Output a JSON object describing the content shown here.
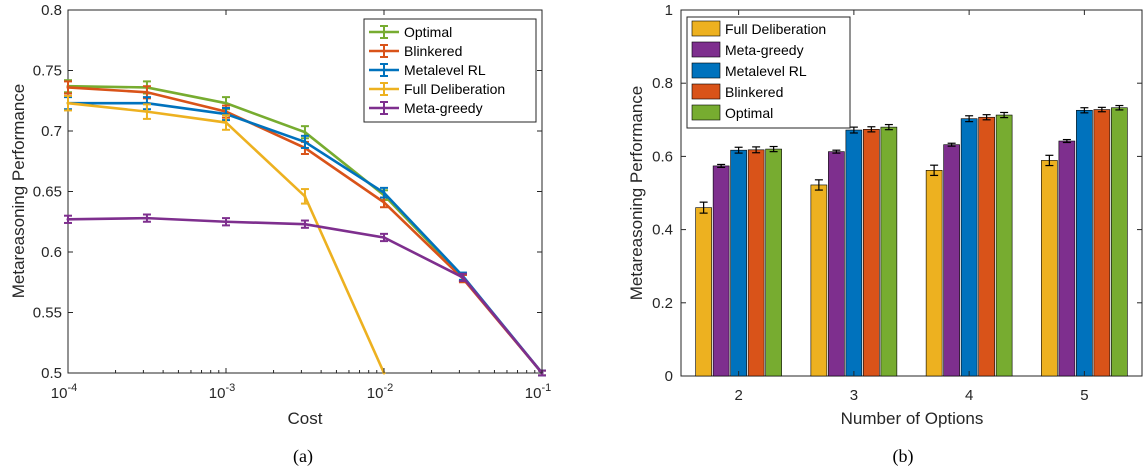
{
  "colors": {
    "Optimal": "#77ac30",
    "Blinkered": "#d95319",
    "Metalevel RL": "#0072bd",
    "Full Deliberation": "#edb120",
    "Meta-greedy": "#7e2f8e"
  },
  "chart_data": [
    {
      "type": "line",
      "caption": "(a)",
      "xlabel": "Cost",
      "ylabel": "Metareasoning Performance",
      "xscale": "log",
      "xlim": [
        0.0001,
        0.1
      ],
      "ylim": [
        0.5,
        0.8
      ],
      "x": [
        0.0001,
        0.000316,
        0.001,
        0.00316,
        0.01,
        0.0316,
        0.1
      ],
      "xticks": [
        {
          "v": 0.0001,
          "base": "10",
          "exp": "-4"
        },
        {
          "v": 0.001,
          "base": "10",
          "exp": "-3"
        },
        {
          "v": 0.01,
          "base": "10",
          "exp": "-2"
        },
        {
          "v": 0.1,
          "base": "10",
          "exp": "-1"
        }
      ],
      "yticks": [
        "0.5",
        "0.55",
        "0.6",
        "0.65",
        "0.7",
        "0.75",
        "0.8"
      ],
      "legend_position": "top-right",
      "series": [
        {
          "name": "Optimal",
          "values": [
            0.737,
            0.736,
            0.723,
            0.699,
            0.647,
            0.579,
            0.5
          ],
          "err": [
            0.005,
            0.005,
            0.005,
            0.005,
            0.004,
            0.003,
            0.002
          ]
        },
        {
          "name": "Blinkered",
          "values": [
            0.736,
            0.732,
            0.716,
            0.686,
            0.641,
            0.578,
            0.5
          ],
          "err": [
            0.005,
            0.005,
            0.005,
            0.005,
            0.004,
            0.003,
            0.002
          ]
        },
        {
          "name": "Metalevel RL",
          "values": [
            0.723,
            0.723,
            0.714,
            0.691,
            0.649,
            0.58,
            0.5
          ],
          "err": [
            0.005,
            0.005,
            0.005,
            0.005,
            0.004,
            0.003,
            0.002
          ]
        },
        {
          "name": "Full Deliberation",
          "values": [
            0.723,
            0.716,
            0.707,
            0.646,
            0.5,
            null,
            null
          ],
          "err": [
            0.006,
            0.006,
            0.006,
            0.006,
            0,
            0,
            0
          ]
        },
        {
          "name": "Meta-greedy",
          "values": [
            0.627,
            0.628,
            0.625,
            0.623,
            0.612,
            0.579,
            0.5
          ],
          "err": [
            0.003,
            0.003,
            0.003,
            0.003,
            0.003,
            0.003,
            0.002
          ]
        }
      ]
    },
    {
      "type": "bar",
      "caption": "(b)",
      "xlabel": "Number of Options",
      "ylabel": "Metareasoning Performance",
      "ylim": [
        0,
        1
      ],
      "yticks": [
        "0",
        "0.2",
        "0.4",
        "0.6",
        "0.8",
        "1"
      ],
      "categories": [
        "2",
        "3",
        "4",
        "5"
      ],
      "legend_position": "top-left",
      "series": [
        {
          "name": "Full Deliberation",
          "values": [
            0.46,
            0.522,
            0.562,
            0.589
          ],
          "err": [
            0.015,
            0.014,
            0.014,
            0.014
          ]
        },
        {
          "name": "Meta-greedy",
          "values": [
            0.574,
            0.613,
            0.632,
            0.642
          ],
          "err": [
            0.004,
            0.004,
            0.004,
            0.004
          ]
        },
        {
          "name": "Metalevel RL",
          "values": [
            0.617,
            0.672,
            0.703,
            0.726
          ],
          "err": [
            0.008,
            0.008,
            0.008,
            0.007
          ]
        },
        {
          "name": "Blinkered",
          "values": [
            0.618,
            0.674,
            0.707,
            0.728
          ],
          "err": [
            0.008,
            0.007,
            0.007,
            0.006
          ]
        },
        {
          "name": "Optimal",
          "values": [
            0.62,
            0.68,
            0.713,
            0.733
          ],
          "err": [
            0.007,
            0.007,
            0.007,
            0.006
          ]
        }
      ]
    }
  ]
}
